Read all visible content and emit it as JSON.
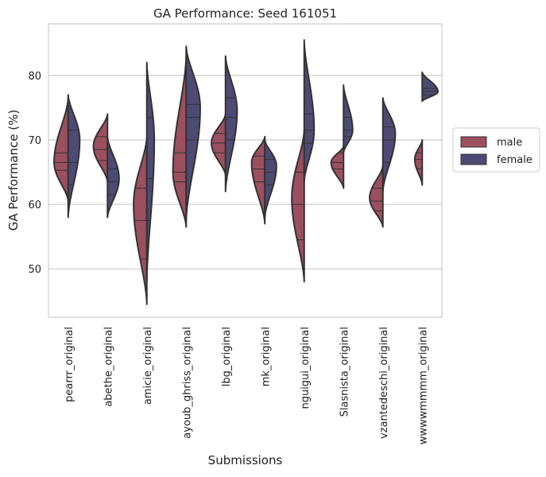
{
  "chart_data": {
    "type": "violin",
    "title": "GA Performance: Seed 161051",
    "xlabel": "Submissions",
    "ylabel": "GA Performance (%)",
    "ylim": [
      42.5,
      88
    ],
    "yticks": [
      50,
      60,
      70,
      80
    ],
    "grid": "horizontal",
    "split": true,
    "inner": "quartiles",
    "legend_position": "right",
    "categories": [
      "pearrr_original",
      "abethe_original",
      "amicie_original",
      "ayoub_ghriss_original",
      "lbg_original",
      "mk_original",
      "nguigui_original",
      "Slasnista_original",
      "vzantedeschi_original",
      "wwwwmmmm_original"
    ],
    "series": [
      {
        "name": "male",
        "color": "#9b4f5f",
        "violins": [
          {
            "min": 60.5,
            "q1": 65.3,
            "median": 66.5,
            "q3": 68.0,
            "max": 76.5,
            "mode": 66.5,
            "width": 0.85
          },
          {
            "min": 63.5,
            "q1": 66.8,
            "median": 68.5,
            "q3": 70.5,
            "max": 74.0,
            "mode": 69.0,
            "width": 0.85
          },
          {
            "min": 44.5,
            "q1": 51.5,
            "median": 57.5,
            "q3": 62.5,
            "max": 70.5,
            "mode": 60.0,
            "width": 0.8
          },
          {
            "min": 56.5,
            "q1": 63.5,
            "median": 65.0,
            "q3": 68.0,
            "max": 83.0,
            "mode": 65.0,
            "width": 0.8
          },
          {
            "min": 64.5,
            "q1": 68.0,
            "median": 69.5,
            "q3": 71.0,
            "max": 74.0,
            "mode": 69.5,
            "width": 0.85
          },
          {
            "min": 57.0,
            "q1": 63.5,
            "median": 65.5,
            "q3": 67.5,
            "max": 70.5,
            "mode": 66.5,
            "width": 0.8
          },
          {
            "min": 48.0,
            "q1": 54.5,
            "median": 60.0,
            "q3": 65.0,
            "max": 71.5,
            "mode": 61.0,
            "width": 0.75
          },
          {
            "min": 62.5,
            "q1": 65.5,
            "median": 66.5,
            "q3": 68.0,
            "max": 69.0,
            "mode": 66.5,
            "width": 0.75
          },
          {
            "min": 56.5,
            "q1": 59.0,
            "median": 60.5,
            "q3": 62.5,
            "max": 66.0,
            "mode": 61.0,
            "width": 0.8
          },
          {
            "min": 63.0,
            "q1": 65.5,
            "median": 67.0,
            "q3": 68.0,
            "max": 70.0,
            "mode": 67.0,
            "width": 0.45
          }
        ]
      },
      {
        "name": "female",
        "color": "#4d4a74",
        "violins": [
          {
            "min": 58.0,
            "q1": 63.0,
            "median": 66.5,
            "q3": 71.5,
            "max": 77.0,
            "mode": 70.0,
            "width": 0.7
          },
          {
            "min": 58.0,
            "q1": 61.5,
            "median": 63.5,
            "q3": 65.5,
            "max": 70.5,
            "mode": 64.0,
            "width": 0.7
          },
          {
            "min": 48.0,
            "q1": 57.5,
            "median": 64.0,
            "q3": 73.5,
            "max": 82.0,
            "mode": 70.0,
            "width": 0.45
          },
          {
            "min": 57.5,
            "q1": 70.0,
            "median": 73.5,
            "q3": 75.5,
            "max": 84.5,
            "mode": 75.0,
            "width": 0.85
          },
          {
            "min": 62.0,
            "q1": 70.0,
            "median": 73.5,
            "q3": 76.5,
            "max": 83.0,
            "mode": 74.5,
            "width": 0.7
          },
          {
            "min": 58.0,
            "q1": 63.0,
            "median": 65.0,
            "q3": 67.0,
            "max": 70.0,
            "mode": 66.0,
            "width": 0.7
          },
          {
            "min": 63.5,
            "q1": 69.5,
            "median": 71.5,
            "q3": 74.0,
            "max": 85.5,
            "mode": 71.5,
            "width": 0.6
          },
          {
            "min": 68.0,
            "q1": 70.5,
            "median": 71.5,
            "q3": 73.5,
            "max": 78.5,
            "mode": 71.5,
            "width": 0.55
          },
          {
            "min": 62.0,
            "q1": 66.5,
            "median": 70.0,
            "q3": 72.0,
            "max": 76.5,
            "mode": 71.0,
            "width": 0.75
          },
          {
            "min": 76.0,
            "q1": 77.0,
            "median": 77.5,
            "q3": 78.0,
            "max": 80.5,
            "mode": 77.5,
            "width": 0.95
          }
        ]
      }
    ]
  }
}
